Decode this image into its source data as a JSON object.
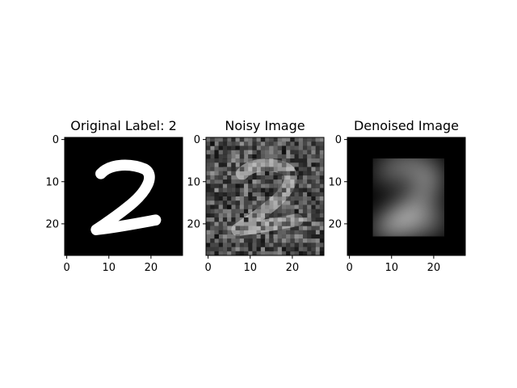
{
  "panels": [
    {
      "title": "Original Label: 2",
      "image_kind": "original",
      "x_ticks": [
        "0",
        "10",
        "20"
      ],
      "y_ticks": [
        "0",
        "10",
        "20"
      ]
    },
    {
      "title": "Noisy Image",
      "image_kind": "noisy",
      "x_ticks": [
        "0",
        "10",
        "20"
      ],
      "y_ticks": [
        "0",
        "10",
        "20"
      ]
    },
    {
      "title": "Denoised Image",
      "image_kind": "denoised",
      "x_ticks": [
        "0",
        "10",
        "20"
      ],
      "y_ticks": [
        "0",
        "10",
        "20"
      ]
    }
  ],
  "image_size": [
    28,
    28
  ],
  "colormap": "gray"
}
